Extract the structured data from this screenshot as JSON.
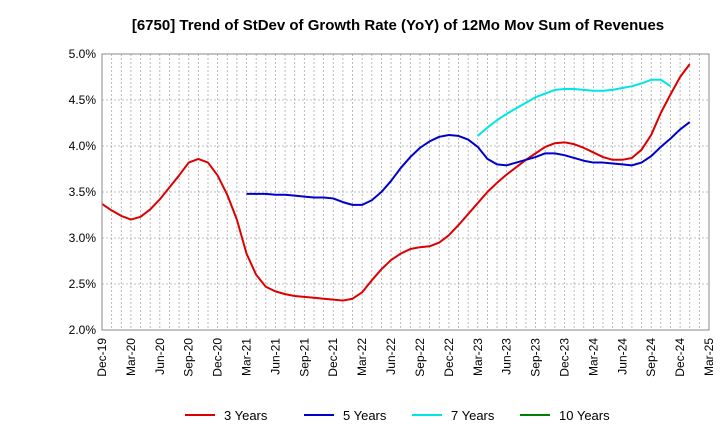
{
  "chart_data": {
    "type": "line",
    "title": "[6750]  Trend of StDev of Growth Rate (YoY) of 12Mo Mov Sum of Revenues",
    "xlabel": "",
    "ylabel": "",
    "ylim": [
      2.0,
      5.0
    ],
    "yticks": [
      2.0,
      2.5,
      3.0,
      3.5,
      4.0,
      4.5,
      5.0
    ],
    "ytick_labels": [
      "2.0%",
      "2.5%",
      "3.0%",
      "3.5%",
      "4.0%",
      "4.5%",
      "5.0%"
    ],
    "x_categories": [
      "Dec-19",
      "Mar-20",
      "Jun-20",
      "Sep-20",
      "Dec-20",
      "Mar-21",
      "Jun-21",
      "Sep-21",
      "Dec-21",
      "Mar-22",
      "Jun-22",
      "Sep-22",
      "Dec-22",
      "Mar-23",
      "Jun-23",
      "Sep-23",
      "Dec-23",
      "Mar-24",
      "Jun-24",
      "Sep-24",
      "Dec-24",
      "Mar-25"
    ],
    "x_index_note": "month index 0 = Dec-19, one unit per month, 63 = Mar-25",
    "x_range": [
      0,
      63
    ],
    "legend_position": "bottom",
    "series": [
      {
        "name": "3 Years",
        "color": "#dd0000",
        "start_index": 0,
        "values": [
          3.37,
          3.3,
          3.24,
          3.2,
          3.23,
          3.31,
          3.42,
          3.55,
          3.68,
          3.82,
          3.86,
          3.82,
          3.68,
          3.47,
          3.2,
          2.83,
          2.6,
          2.47,
          2.42,
          2.39,
          2.37,
          2.36,
          2.35,
          2.34,
          2.33,
          2.32,
          2.34,
          2.41,
          2.54,
          2.66,
          2.76,
          2.83,
          2.88,
          2.9,
          2.91,
          2.95,
          3.03,
          3.14,
          3.26,
          3.38,
          3.5,
          3.6,
          3.69,
          3.77,
          3.85,
          3.92,
          3.99,
          4.03,
          4.04,
          4.02,
          3.98,
          3.93,
          3.88,
          3.85,
          3.85,
          3.87,
          3.96,
          4.12,
          4.36,
          4.56,
          4.75,
          4.89
        ]
      },
      {
        "name": "5 Years",
        "color": "#0000cc",
        "start_index": 15,
        "values": [
          3.48,
          3.48,
          3.48,
          3.47,
          3.47,
          3.46,
          3.45,
          3.44,
          3.44,
          3.43,
          3.39,
          3.36,
          3.36,
          3.41,
          3.5,
          3.62,
          3.76,
          3.88,
          3.98,
          4.05,
          4.1,
          4.12,
          4.11,
          4.07,
          3.99,
          3.86,
          3.8,
          3.79,
          3.82,
          3.85,
          3.88,
          3.92,
          3.92,
          3.9,
          3.87,
          3.84,
          3.82,
          3.82,
          3.81,
          3.8,
          3.79,
          3.82,
          3.89,
          3.99,
          4.08,
          4.18,
          4.26
        ]
      },
      {
        "name": "7 Years",
        "color": "#00e5e5",
        "start_index": 39,
        "values": [
          4.11,
          4.2,
          4.28,
          4.35,
          4.41,
          4.47,
          4.53,
          4.57,
          4.61,
          4.62,
          4.62,
          4.61,
          4.6,
          4.6,
          4.61,
          4.63,
          4.65,
          4.68,
          4.72,
          4.72,
          4.65
        ]
      },
      {
        "name": "10 Years",
        "color": "#008000",
        "start_index": null,
        "values": []
      }
    ]
  }
}
